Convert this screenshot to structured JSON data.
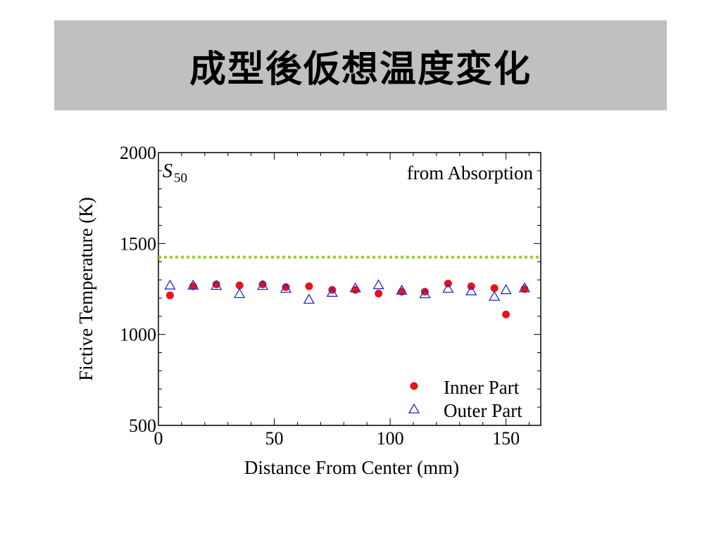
{
  "slide": {
    "title": "成型後仮想温度変化"
  },
  "chart_data": {
    "type": "scatter",
    "xlabel": "Distance From Center (mm)",
    "ylabel": "Fictive Temperature (K)",
    "xlim": [
      0,
      165
    ],
    "ylim": [
      500,
      2000
    ],
    "x_ticks": [
      0,
      50,
      100,
      150
    ],
    "y_ticks": [
      500,
      1000,
      1500,
      2000
    ],
    "grid": false,
    "annotations": [
      {
        "text": "S",
        "subscript": "50",
        "position": "top-left",
        "style": "italic"
      },
      {
        "text": "from Absorption",
        "position": "top-right"
      }
    ],
    "reference_line": {
      "y": 1425,
      "style": "dotted",
      "color": "#9acd32"
    },
    "legend_position": "bottom-right",
    "series": [
      {
        "name": "Inner Part",
        "marker": "filled-circle",
        "color": "#e8141c",
        "x": [
          5,
          15,
          25,
          35,
          45,
          55,
          65,
          75,
          85,
          95,
          105,
          115,
          125,
          135,
          145,
          150,
          158
        ],
        "y": [
          1215,
          1265,
          1275,
          1270,
          1275,
          1260,
          1265,
          1245,
          1245,
          1225,
          1235,
          1235,
          1280,
          1265,
          1255,
          1110,
          1250
        ]
      },
      {
        "name": "Outer Part",
        "marker": "open-triangle",
        "color": "#1e28d2",
        "x": [
          5,
          15,
          25,
          35,
          45,
          55,
          65,
          75,
          85,
          95,
          105,
          115,
          125,
          135,
          145,
          150,
          158
        ],
        "y": [
          1270,
          1270,
          1268,
          1223,
          1268,
          1252,
          1192,
          1230,
          1255,
          1272,
          1242,
          1222,
          1252,
          1238,
          1208,
          1245,
          1255
        ]
      }
    ]
  }
}
